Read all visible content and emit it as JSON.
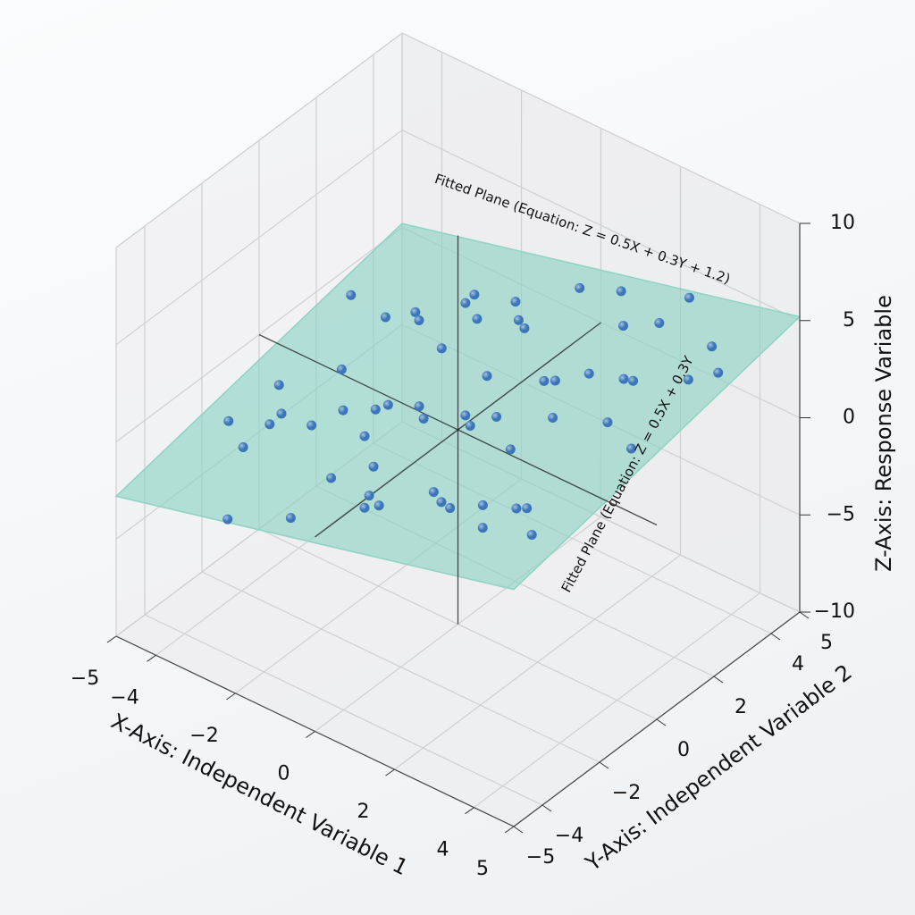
{
  "chart_data": {
    "type": "scatter3d",
    "xlabel": "X-Axis: Independent Variable 1",
    "ylabel": "Y-Axis: Independent Variable 2",
    "zlabel": "Z-Axis: Response Variable",
    "xlim": [
      -5,
      5
    ],
    "ylim": [
      -5,
      5
    ],
    "zlim": [
      -10,
      10
    ],
    "xticks": [
      {
        "value": -5,
        "label": "−5"
      },
      {
        "value": -4,
        "label": "−4"
      },
      {
        "value": -2,
        "label": "−2"
      },
      0,
      2,
      4,
      5
    ],
    "yticks": [
      {
        "value": -5,
        "label": "−5"
      },
      {
        "value": -4,
        "label": "−4"
      },
      {
        "value": -2,
        "label": "−2"
      },
      0,
      2,
      4,
      5
    ],
    "zticks": [
      {
        "value": -10,
        "label": "−10"
      },
      {
        "value": -5,
        "label": "−5"
      },
      0,
      5,
      10
    ],
    "grid": true,
    "plane": {
      "x_coefficient": 0.5,
      "y_coefficient": 0.3,
      "intercept": 1.2,
      "color": "#8fd3c4"
    },
    "annotations": [
      "Fitted Plane  (Equation: Z = 0.5X + 0.3Y + 1.2)",
      "Fitted Plane (Equation: Z = 0.5X + 0.3Y"
    ],
    "series": [
      {
        "color": "#3b76b9",
        "x": [
          -4.2,
          -3.8,
          -3.5,
          -3.1,
          -2.9,
          -2.6,
          -2.4,
          -2.1,
          -1.9,
          -1.6,
          -1.4,
          -1.2,
          -0.9,
          -0.7,
          -0.4,
          -0.2,
          0.1,
          0.3,
          0.6,
          0.8,
          1.1,
          1.3,
          1.6,
          1.8,
          2.1,
          2.3,
          2.6,
          2.8,
          3.1,
          3.4,
          3.7,
          4.0,
          4.3,
          -3.9,
          -3.3,
          -2.7,
          -2.2,
          -1.7,
          -1.1,
          -0.6,
          -0.1,
          0.4,
          0.9,
          1.4,
          1.9,
          2.4,
          2.9,
          3.5,
          4.1,
          -4.5,
          -3.0,
          -1.5,
          0.0,
          1.5,
          3.0,
          4.5,
          -2.0,
          0.5,
          2.0,
          3.8
        ],
        "y": [
          2.1,
          -1.3,
          0.8,
          -3.2,
          1.5,
          -0.4,
          3.6,
          -2.2,
          0.2,
          2.8,
          -3.9,
          1.1,
          -1.7,
          3.3,
          -0.8,
          2.4,
          -2.9,
          0.6,
          -4.1,
          1.9,
          -1.1,
          3.9,
          -2.5,
          0.9,
          -3.5,
          2.6,
          -0.3,
          4.2,
          -1.9,
          1.4,
          -3.1,
          0.5,
          2.9,
          -2.6,
          3.1,
          -4.3,
          1.7,
          -0.9,
          2.2,
          -3.6,
          0.4,
          3.7,
          -2.1,
          -0.6,
          4.4,
          -1.5,
          1.2,
          -4.0,
          3.4,
          0.0,
          -2.0,
          4.1,
          -1.2,
          2.5,
          -3.3,
          1.8,
          -0.1,
          -3.8,
          3.0,
          -2.7
        ],
        "z": [
          0.5,
          -2.0,
          -1.2,
          -0.4,
          1.3,
          -1.1,
          0.2,
          0.6,
          -0.8,
          2.3,
          -1.6,
          1.8,
          -0.9,
          0.9,
          1.7,
          2.8,
          -0.6,
          2.4,
          1.1,
          1.2,
          2.5,
          4.1,
          0.3,
          3.3,
          2.2,
          2.0,
          3.5,
          4.9,
          1.1,
          4.3,
          3.0,
          2.4,
          5.3,
          -0.5,
          -0.6,
          -2.5,
          1.6,
          -1.0,
          2.2,
          0.9,
          0.2,
          3.6,
          0.0,
          2.7,
          2.5,
          3.0,
          1.9,
          2.8,
          3.2,
          -2.1,
          0.1,
          0.6,
          1.9,
          1.6,
          2.7,
          5.0,
          -0.8,
          1.3,
          4.0,
          1.3
        ]
      }
    ]
  }
}
